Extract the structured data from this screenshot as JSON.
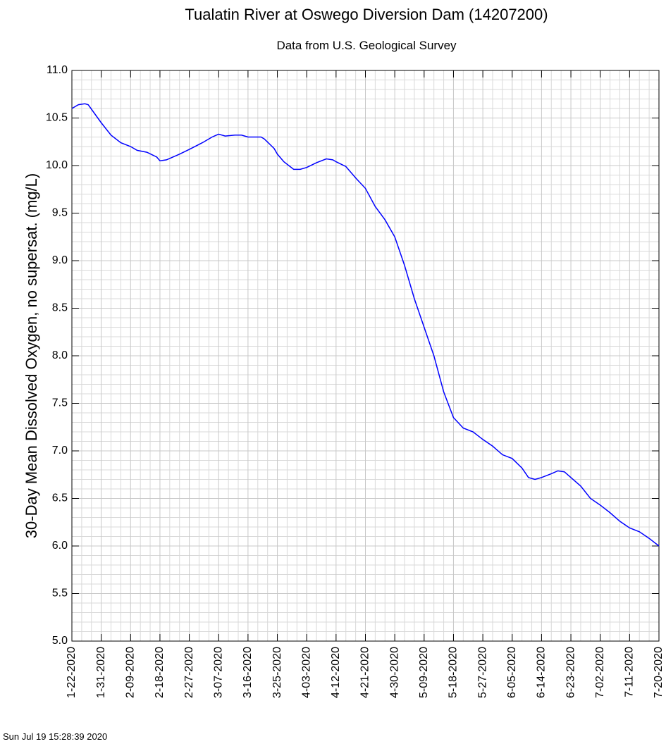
{
  "chart_data": {
    "type": "line",
    "title": "Tualatin River at Oswego Diversion Dam (14207200)",
    "subtitle": "Data from U.S. Geological Survey",
    "y_label": "30-Day Mean Dissolved Oxygen, no supersat. (mg/L)",
    "footer": "Sun Jul 19 15:28:39 2020",
    "x": [
      "2020-01-22",
      "2020-01-24",
      "2020-01-26",
      "2020-01-27",
      "2020-01-31",
      "2020-02-03",
      "2020-02-06",
      "2020-02-09",
      "2020-02-11",
      "2020-02-14",
      "2020-02-17",
      "2020-02-18",
      "2020-02-20",
      "2020-02-24",
      "2020-02-27",
      "2020-03-02",
      "2020-03-05",
      "2020-03-07",
      "2020-03-09",
      "2020-03-12",
      "2020-03-14",
      "2020-03-16",
      "2020-03-20",
      "2020-03-21",
      "2020-03-24",
      "2020-03-25",
      "2020-03-27",
      "2020-03-30",
      "2020-04-01",
      "2020-04-03",
      "2020-04-06",
      "2020-04-09",
      "2020-04-11",
      "2020-04-12",
      "2020-04-15",
      "2020-04-18",
      "2020-04-21",
      "2020-04-24",
      "2020-04-27",
      "2020-04-30",
      "2020-05-03",
      "2020-05-06",
      "2020-05-09",
      "2020-05-12",
      "2020-05-15",
      "2020-05-18",
      "2020-05-21",
      "2020-05-24",
      "2020-05-27",
      "2020-05-30",
      "2020-06-02",
      "2020-06-05",
      "2020-06-08",
      "2020-06-10",
      "2020-06-12",
      "2020-06-14",
      "2020-06-17",
      "2020-06-19",
      "2020-06-21",
      "2020-06-23",
      "2020-06-26",
      "2020-06-29",
      "2020-07-02",
      "2020-07-05",
      "2020-07-08",
      "2020-07-11",
      "2020-07-14",
      "2020-07-17",
      "2020-07-20"
    ],
    "series": [
      {
        "name": "30-Day Mean Dissolved Oxygen",
        "color": "#0000ff",
        "values": [
          10.6,
          10.64,
          10.65,
          10.64,
          10.45,
          10.32,
          10.24,
          10.2,
          10.16,
          10.14,
          10.09,
          10.05,
          10.06,
          10.12,
          10.17,
          10.24,
          10.3,
          10.33,
          10.31,
          10.32,
          10.32,
          10.3,
          10.3,
          10.28,
          10.18,
          10.12,
          10.04,
          9.96,
          9.96,
          9.98,
          10.03,
          10.07,
          10.06,
          10.04,
          9.99,
          9.87,
          9.76,
          9.57,
          9.43,
          9.25,
          8.95,
          8.6,
          8.3,
          8.0,
          7.62,
          7.35,
          7.24,
          7.2,
          7.12,
          7.05,
          6.96,
          6.92,
          6.82,
          6.72,
          6.7,
          6.72,
          6.76,
          6.79,
          6.78,
          6.72,
          6.63,
          6.5,
          6.43,
          6.35,
          6.26,
          6.19,
          6.15,
          6.08,
          6.0
        ]
      }
    ],
    "xlim": [
      "2020-01-22",
      "2020-07-20"
    ],
    "xticks": [
      {
        "value": "2020-01-22",
        "label": "1-22-2020"
      },
      {
        "value": "2020-01-31",
        "label": "1-31-2020"
      },
      {
        "value": "2020-02-09",
        "label": "2-09-2020"
      },
      {
        "value": "2020-02-18",
        "label": "2-18-2020"
      },
      {
        "value": "2020-02-27",
        "label": "2-27-2020"
      },
      {
        "value": "2020-03-07",
        "label": "3-07-2020"
      },
      {
        "value": "2020-03-16",
        "label": "3-16-2020"
      },
      {
        "value": "2020-03-25",
        "label": "3-25-2020"
      },
      {
        "value": "2020-04-03",
        "label": "4-03-2020"
      },
      {
        "value": "2020-04-12",
        "label": "4-12-2020"
      },
      {
        "value": "2020-04-21",
        "label": "4-21-2020"
      },
      {
        "value": "2020-04-30",
        "label": "4-30-2020"
      },
      {
        "value": "2020-05-09",
        "label": "5-09-2020"
      },
      {
        "value": "2020-05-18",
        "label": "5-18-2020"
      },
      {
        "value": "2020-05-27",
        "label": "5-27-2020"
      },
      {
        "value": "2020-06-05",
        "label": "6-05-2020"
      },
      {
        "value": "2020-06-14",
        "label": "6-14-2020"
      },
      {
        "value": "2020-06-23",
        "label": "6-23-2020"
      },
      {
        "value": "2020-07-02",
        "label": "7-02-2020"
      },
      {
        "value": "2020-07-11",
        "label": "7-11-2020"
      },
      {
        "value": "2020-07-20",
        "label": "7-20-2020"
      }
    ],
    "ylim": [
      5,
      11
    ],
    "yticks": [
      {
        "value": 5,
        "label": "5.0"
      },
      {
        "value": 5.5,
        "label": "5.5"
      },
      {
        "value": 6,
        "label": "6.0"
      },
      {
        "value": 6.5,
        "label": "6.5"
      },
      {
        "value": 7,
        "label": "7.0"
      },
      {
        "value": 7.5,
        "label": "7.5"
      },
      {
        "value": 8,
        "label": "8.0"
      },
      {
        "value": 8.5,
        "label": "8.5"
      },
      {
        "value": 9,
        "label": "9.0"
      },
      {
        "value": 9.5,
        "label": "9.5"
      },
      {
        "value": 10,
        "label": "10.0"
      },
      {
        "value": 10.5,
        "label": "10.5"
      },
      {
        "value": 11,
        "label": "11.0"
      }
    ],
    "grid": true
  }
}
